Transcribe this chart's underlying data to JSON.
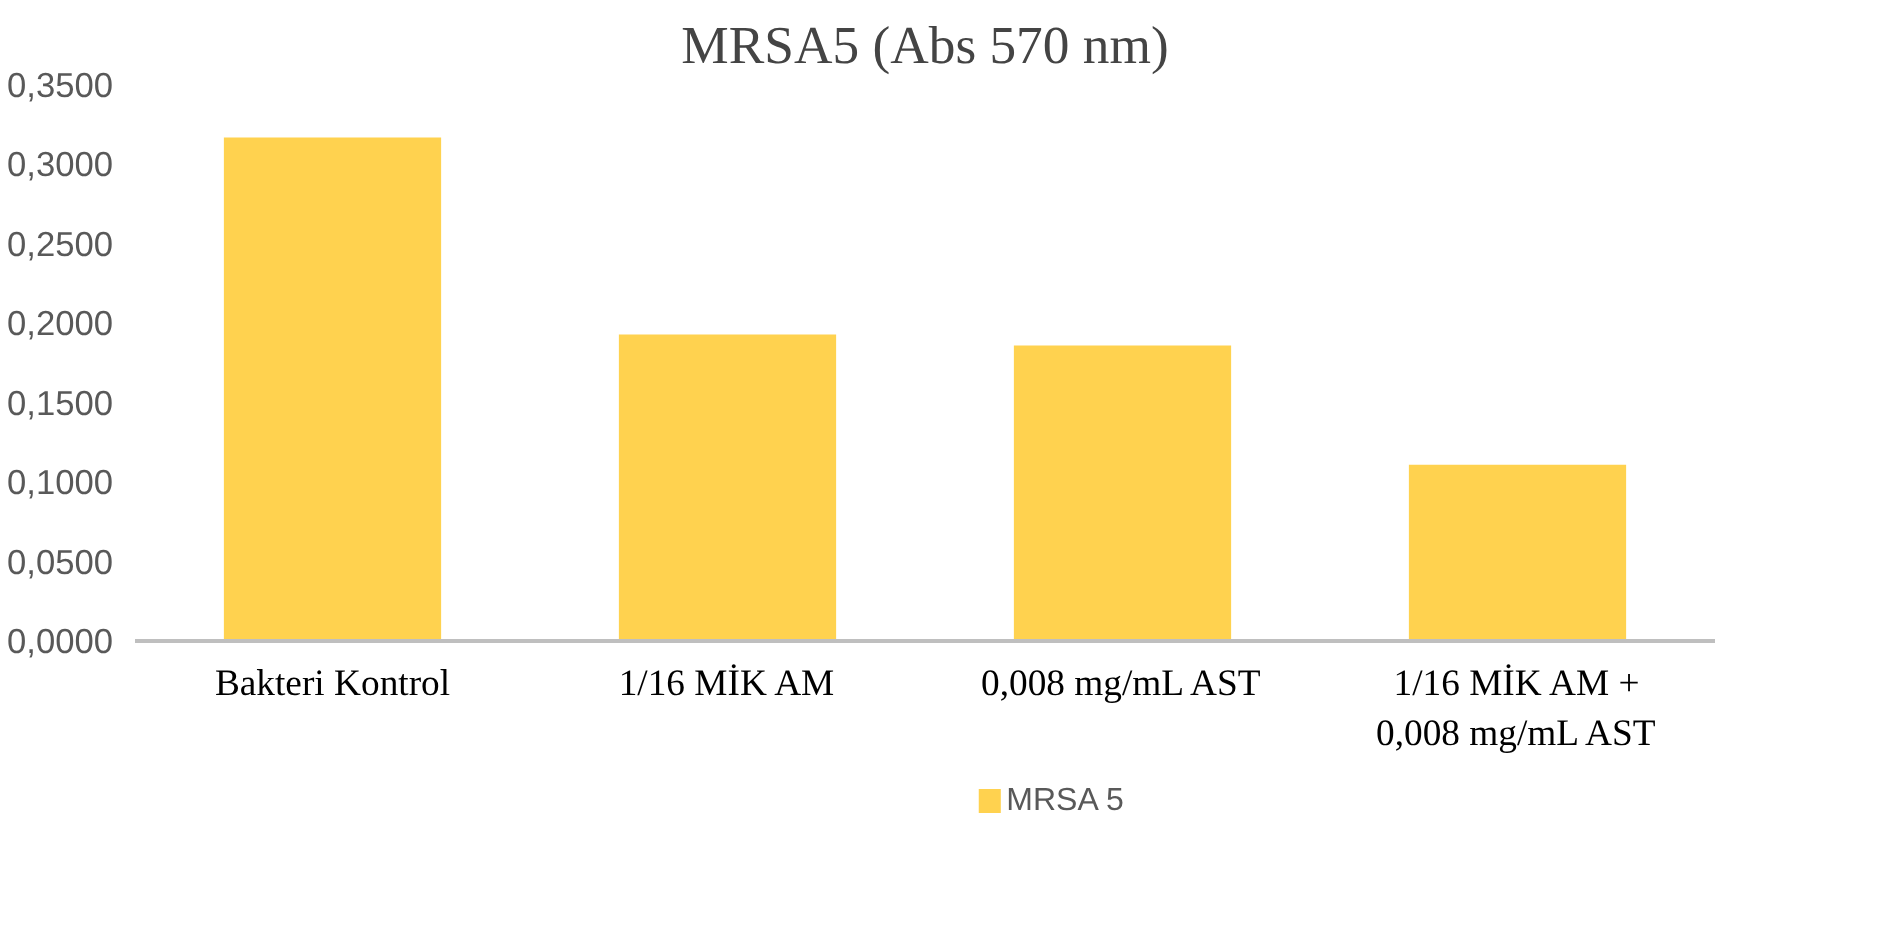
{
  "chart_data": {
    "type": "bar",
    "title": "MRSA5 (Abs 570 nm)",
    "categories": [
      "Bakteri Kontrol",
      "1/16 MİK AM",
      "0,008 mg/mL AST",
      "1/16 MİK AM + 0,008 mg/mL AST"
    ],
    "series": [
      {
        "name": "MRSA 5",
        "color": "#ffd24f",
        "values": [
          0.317,
          0.193,
          0.186,
          0.111
        ]
      }
    ],
    "ylim": [
      0,
      0.35
    ],
    "yticks": [
      {
        "value": 0,
        "label": "0,0000"
      },
      {
        "value": 0.05,
        "label": "0,0500"
      },
      {
        "value": 0.1,
        "label": "0,1000"
      },
      {
        "value": 0.15,
        "label": "0,1500"
      },
      {
        "value": 0.2,
        "label": "0,2000"
      },
      {
        "value": 0.25,
        "label": "0,2500"
      },
      {
        "value": 0.3,
        "label": "0,3000"
      },
      {
        "value": 0.35,
        "label": "0,3500"
      }
    ],
    "grid": false,
    "legend": "bottom"
  }
}
